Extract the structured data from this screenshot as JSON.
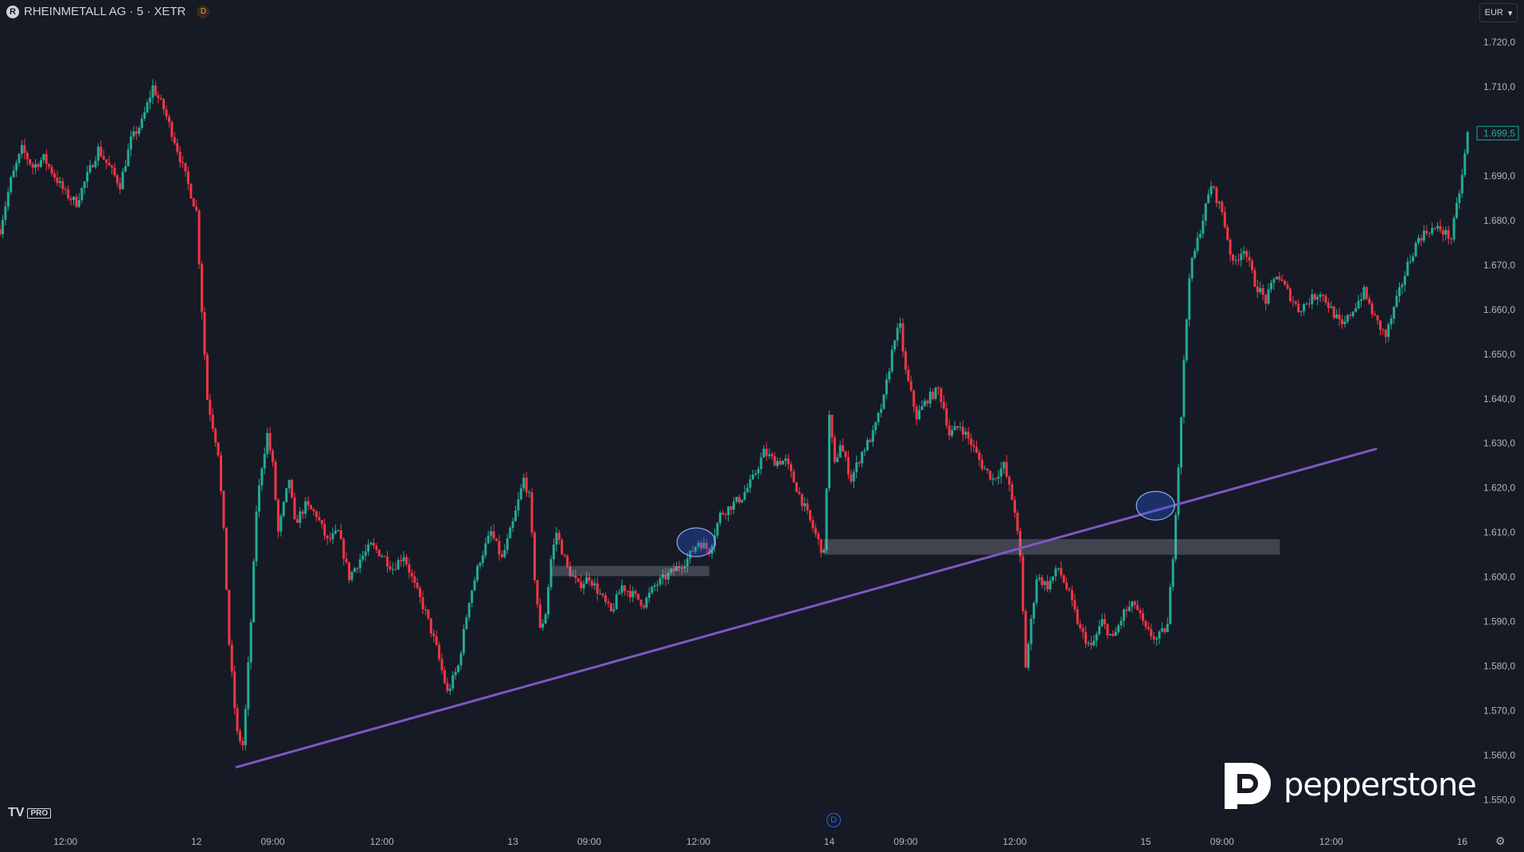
{
  "header": {
    "symbol_title": "RHEINMETALL AG · 5 · XETR",
    "logo_glyph": "R",
    "interval_badge": "D"
  },
  "currency_button": {
    "label": "EUR",
    "caret": "▾"
  },
  "branding": {
    "tradingview_logo": "TV",
    "tradingview_pro": "PRO",
    "broker_name": "pepperstone",
    "broker_logo_glyph": "P"
  },
  "dividend_marker": {
    "label": "D"
  },
  "settings_icon": "gear-icon",
  "chart_data": {
    "type": "candlestick",
    "instrument": "RHEINMETALL AG",
    "interval": "5",
    "exchange": "XETR",
    "currency": "EUR",
    "last_price_label": "1.699,5",
    "last_price": 1699.5,
    "ylim": [
      1546,
      1724
    ],
    "y_ticks": [
      {
        "value": 1720,
        "label": "1.720,0"
      },
      {
        "value": 1710,
        "label": "1.710,0"
      },
      {
        "value": 1700,
        "label": "1.700,0"
      },
      {
        "value": 1690,
        "label": "1.690,0"
      },
      {
        "value": 1680,
        "label": "1.680,0"
      },
      {
        "value": 1670,
        "label": "1.670,0"
      },
      {
        "value": 1660,
        "label": "1.660,0"
      },
      {
        "value": 1650,
        "label": "1.650,0"
      },
      {
        "value": 1640,
        "label": "1.640,0"
      },
      {
        "value": 1630,
        "label": "1.630,0"
      },
      {
        "value": 1620,
        "label": "1.620,0"
      },
      {
        "value": 1610,
        "label": "1.610,0"
      },
      {
        "value": 1600,
        "label": "1.600,0"
      },
      {
        "value": 1590,
        "label": "1.590,0"
      },
      {
        "value": 1580,
        "label": "1.580,0"
      },
      {
        "value": 1570,
        "label": "1.570,0"
      },
      {
        "value": 1560,
        "label": "1.560,0"
      },
      {
        "value": 1550,
        "label": "1.550,0"
      }
    ],
    "x_ticks": [
      {
        "t": 6,
        "label": "12:00"
      },
      {
        "t": 18,
        "label": "12"
      },
      {
        "t": 25,
        "label": "09:00"
      },
      {
        "t": 35,
        "label": "12:00"
      },
      {
        "t": 47,
        "label": "13"
      },
      {
        "t": 54,
        "label": "09:00"
      },
      {
        "t": 64,
        "label": "12:00"
      },
      {
        "t": 76,
        "label": "14"
      },
      {
        "t": 83,
        "label": "09:00"
      },
      {
        "t": 93,
        "label": "12:00"
      },
      {
        "t": 105,
        "label": "15"
      },
      {
        "t": 112,
        "label": "09:00"
      },
      {
        "t": 122,
        "label": "12:00"
      },
      {
        "t": 134,
        "label": "16"
      }
    ],
    "up_color": "#22ab94",
    "down_color": "#f23645",
    "price_path": [
      [
        0,
        1678
      ],
      [
        1,
        1689
      ],
      [
        2,
        1696
      ],
      [
        3,
        1692
      ],
      [
        4,
        1694
      ],
      [
        5,
        1690
      ],
      [
        6,
        1686
      ],
      [
        7,
        1684
      ],
      [
        8,
        1690
      ],
      [
        9,
        1696
      ],
      [
        10,
        1692
      ],
      [
        11,
        1688
      ],
      [
        12,
        1698
      ],
      [
        13,
        1702
      ],
      [
        14,
        1710
      ],
      [
        15,
        1705
      ],
      [
        16,
        1698
      ],
      [
        17,
        1690
      ],
      [
        18,
        1682
      ],
      [
        18.5,
        1660
      ],
      [
        19,
        1640
      ],
      [
        20,
        1628
      ],
      [
        20.5,
        1610
      ],
      [
        21,
        1585
      ],
      [
        21.7,
        1565
      ],
      [
        22.3,
        1562
      ],
      [
        23,
        1590
      ],
      [
        23.5,
        1615
      ],
      [
        24,
        1625
      ],
      [
        24.5,
        1632
      ],
      [
        25,
        1625
      ],
      [
        25.5,
        1610
      ],
      [
        26,
        1616
      ],
      [
        26.5,
        1622
      ],
      [
        27,
        1612
      ],
      [
        28,
        1616
      ],
      [
        29,
        1614
      ],
      [
        30,
        1608
      ],
      [
        31,
        1610
      ],
      [
        32,
        1600
      ],
      [
        33,
        1604
      ],
      [
        34,
        1607
      ],
      [
        35,
        1605
      ],
      [
        36,
        1602
      ],
      [
        37,
        1605
      ],
      [
        38,
        1598
      ],
      [
        39,
        1592
      ],
      [
        40,
        1584
      ],
      [
        41,
        1574
      ],
      [
        42,
        1580
      ],
      [
        43,
        1595
      ],
      [
        44,
        1604
      ],
      [
        45,
        1610
      ],
      [
        46,
        1604
      ],
      [
        47,
        1612
      ],
      [
        48,
        1622
      ],
      [
        48.5,
        1618
      ],
      [
        49,
        1600
      ],
      [
        49.5,
        1588
      ],
      [
        50,
        1592
      ],
      [
        50.5,
        1604
      ],
      [
        51,
        1610
      ],
      [
        52,
        1602
      ],
      [
        53,
        1598
      ],
      [
        54,
        1600
      ],
      [
        55,
        1596
      ],
      [
        56,
        1592
      ],
      [
        57,
        1598
      ],
      [
        58,
        1596
      ],
      [
        59,
        1594
      ],
      [
        60,
        1598
      ],
      [
        61,
        1600
      ],
      [
        62,
        1602
      ],
      [
        63,
        1604
      ],
      [
        64,
        1608
      ],
      [
        65,
        1606
      ],
      [
        66,
        1614
      ],
      [
        67,
        1616
      ],
      [
        68,
        1618
      ],
      [
        69,
        1622
      ],
      [
        70,
        1628
      ],
      [
        71,
        1626
      ],
      [
        72,
        1626
      ],
      [
        73,
        1620
      ],
      [
        74,
        1614
      ],
      [
        75,
        1608
      ],
      [
        75.5,
        1605
      ],
      [
        76,
        1636
      ],
      [
        76.5,
        1625
      ],
      [
        77,
        1630
      ],
      [
        78,
        1622
      ],
      [
        79,
        1628
      ],
      [
        80,
        1632
      ],
      [
        81,
        1640
      ],
      [
        82,
        1654
      ],
      [
        82.5,
        1656
      ],
      [
        83,
        1646
      ],
      [
        84,
        1636
      ],
      [
        85,
        1640
      ],
      [
        86,
        1642
      ],
      [
        86.5,
        1638
      ],
      [
        87,
        1632
      ],
      [
        88,
        1634
      ],
      [
        89,
        1630
      ],
      [
        90,
        1625
      ],
      [
        91,
        1622
      ],
      [
        92,
        1625
      ],
      [
        93,
        1615
      ],
      [
        93.5,
        1604
      ],
      [
        94,
        1580
      ],
      [
        94.5,
        1590
      ],
      [
        95,
        1600
      ],
      [
        96,
        1598
      ],
      [
        97,
        1602
      ],
      [
        98,
        1596
      ],
      [
        99,
        1588
      ],
      [
        100,
        1584
      ],
      [
        101,
        1590
      ],
      [
        102,
        1586
      ],
      [
        103,
        1592
      ],
      [
        104,
        1594
      ],
      [
        105,
        1588
      ],
      [
        106,
        1586
      ],
      [
        107,
        1589
      ],
      [
        107.5,
        1605
      ],
      [
        108,
        1625
      ],
      [
        108.5,
        1648
      ],
      [
        109,
        1668
      ],
      [
        110,
        1678
      ],
      [
        111,
        1688
      ],
      [
        112,
        1682
      ],
      [
        113,
        1670
      ],
      [
        114,
        1674
      ],
      [
        115,
        1666
      ],
      [
        116,
        1662
      ],
      [
        117,
        1668
      ],
      [
        118,
        1664
      ],
      [
        119,
        1660
      ],
      [
        120,
        1662
      ],
      [
        121,
        1664
      ],
      [
        122,
        1660
      ],
      [
        123,
        1656
      ],
      [
        124,
        1660
      ],
      [
        125,
        1664
      ],
      [
        126,
        1658
      ],
      [
        127,
        1654
      ],
      [
        128,
        1662
      ],
      [
        129,
        1670
      ],
      [
        130,
        1676
      ],
      [
        131,
        1678
      ],
      [
        132,
        1678
      ],
      [
        133,
        1676
      ],
      [
        134,
        1690
      ],
      [
        134.5,
        1699.5
      ]
    ],
    "annotations": {
      "trendline": {
        "color": "#7e57c2",
        "from": {
          "t": 21.6,
          "price": 1557.3
        },
        "to": {
          "t": 126.2,
          "price": 1628.8
        }
      },
      "zones": [
        {
          "t_start": 50.5,
          "t_end": 65,
          "price_top": 1602.5,
          "price_bottom": 1600.2
        },
        {
          "t_start": 75.5,
          "t_end": 117.3,
          "price_top": 1608.5,
          "price_bottom": 1605
        }
      ],
      "highlights": [
        {
          "t": 63.8,
          "price": 1607.8
        },
        {
          "t": 105.9,
          "price": 1616
        }
      ]
    }
  }
}
